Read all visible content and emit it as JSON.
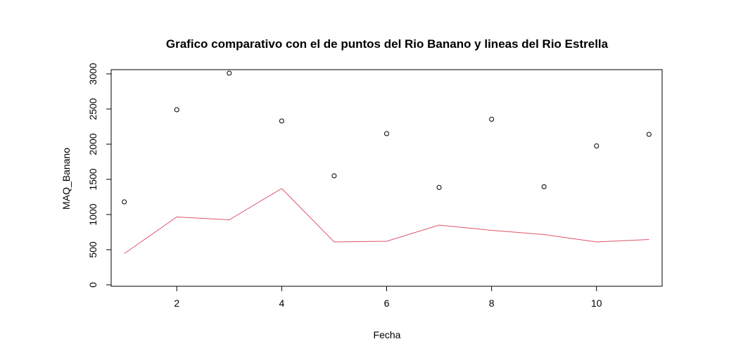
{
  "chart_data": {
    "type": "scatter",
    "title": "Grafico comparativo con el de puntos del Rio Banano y lineas del Rio Estrella",
    "xlabel": "Fecha",
    "ylabel": "MAQ_Banano",
    "xlim": [
      0.75,
      11.25
    ],
    "ylim": [
      -20,
      3060
    ],
    "x_ticks": [
      2,
      4,
      6,
      8,
      10
    ],
    "y_ticks": [
      0,
      500,
      1000,
      1500,
      2000,
      2500,
      3000
    ],
    "grid": false,
    "series": [
      {
        "type": "points",
        "color": "#000000",
        "x": [
          1,
          2,
          3,
          4,
          5,
          6,
          7,
          8,
          9,
          10,
          11
        ],
        "y": [
          1180,
          2490,
          3010,
          2330,
          1550,
          2150,
          1385,
          2355,
          1395,
          1975,
          2140
        ]
      },
      {
        "type": "line",
        "color": "#DF536B",
        "x": [
          1,
          2,
          3,
          4,
          5,
          6,
          7,
          8,
          9,
          10,
          11
        ],
        "y": [
          445,
          965,
          925,
          1370,
          610,
          620,
          850,
          775,
          715,
          610,
          645
        ]
      }
    ]
  }
}
